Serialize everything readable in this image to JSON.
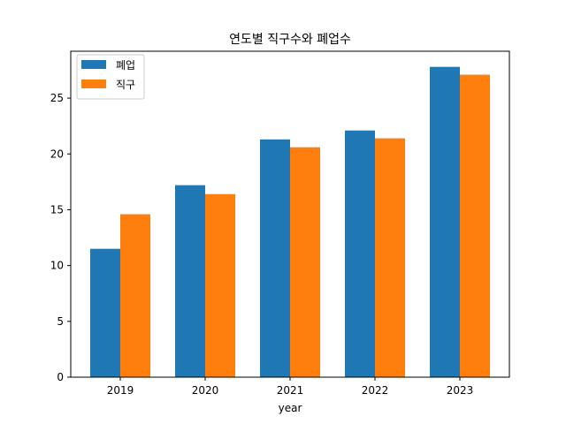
{
  "chart_data": {
    "type": "bar",
    "title": "연도별 직구수와 폐업수",
    "xlabel": "year",
    "ylabel": "",
    "categories": [
      "2019",
      "2020",
      "2021",
      "2022",
      "2023"
    ],
    "series": [
      {
        "name": "폐업",
        "color": "#1f77b4",
        "values": [
          11.5,
          17.2,
          21.3,
          22.1,
          27.8
        ]
      },
      {
        "name": "직구",
        "color": "#ff7f0e",
        "values": [
          14.6,
          16.4,
          20.6,
          21.4,
          27.1
        ]
      }
    ],
    "ylim": [
      0,
      29.2
    ],
    "yticks": [
      0,
      5,
      10,
      15,
      20,
      25
    ],
    "grid": false,
    "legend_position": "top-left"
  }
}
